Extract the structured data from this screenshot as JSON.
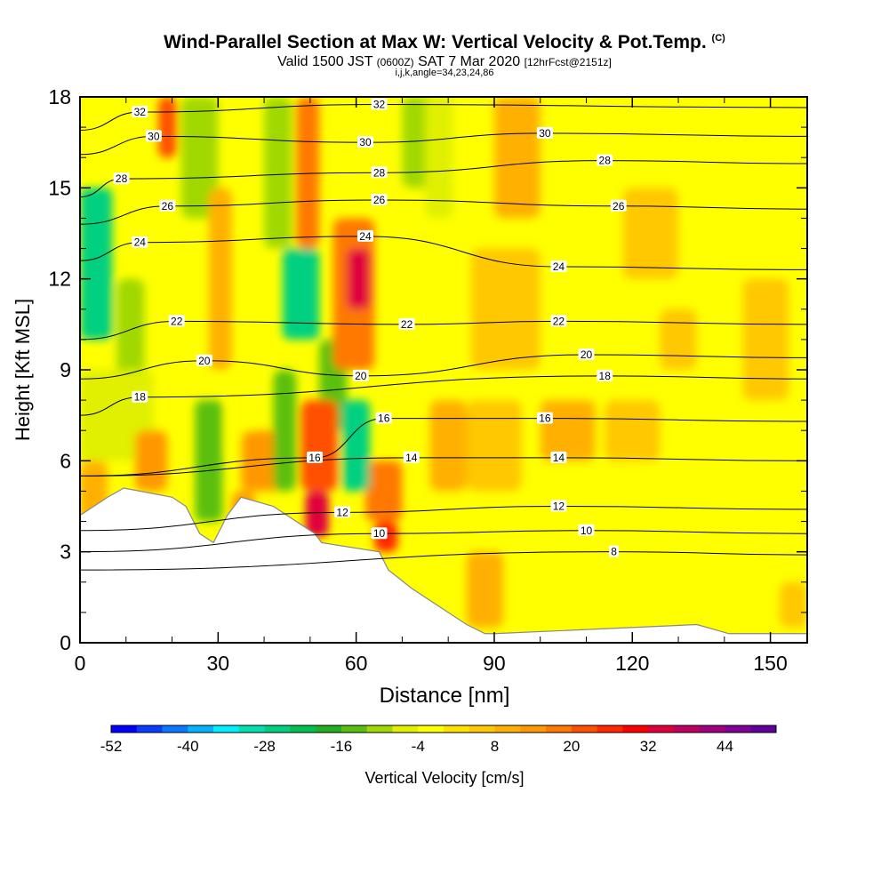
{
  "header": {
    "title": "Wind-Parallel Section at Max W: Vertical Velocity & Pot.Temp.",
    "copyright": "(C)",
    "valid_prefix": "Valid 1500 JST",
    "valid_zulu": "(0600Z)",
    "valid_date": "SAT 7 Mar 2020",
    "forecast_info": "[12hrFcst@2151z]",
    "indices": "i,j,k,angle=34,23,24,86"
  },
  "chart_data": {
    "type": "heatmap",
    "xlabel": "Distance [nm]",
    "ylabel": "Height [Kft MSL]",
    "xlim": [
      0,
      158
    ],
    "ylim": [
      0,
      18
    ],
    "x_ticks": [
      0,
      30,
      60,
      90,
      120,
      150
    ],
    "y_ticks": [
      0,
      3,
      6,
      9,
      12,
      15,
      18
    ],
    "grid": false,
    "colorbar": {
      "label": "Vertical Velocity [cm/s]",
      "tick_labels": [
        -52,
        -40,
        -28,
        -16,
        -4,
        8,
        20,
        32,
        44
      ],
      "range": [
        -52,
        52
      ],
      "colors": [
        "#0000ff",
        "#0a3cff",
        "#0c78ff",
        "#00b4ff",
        "#00f0ff",
        "#00e0b0",
        "#00d080",
        "#00c050",
        "#20b020",
        "#5ac010",
        "#a0d800",
        "#e0f000",
        "#ffff00",
        "#ffe000",
        "#ffc800",
        "#ffb000",
        "#ff9800",
        "#ff7800",
        "#ff5000",
        "#ff2800",
        "#ff0000",
        "#e0003c",
        "#c00060",
        "#a00080",
        "#800098",
        "#60009c"
      ]
    },
    "theta_contours": {
      "levels": [
        8,
        10,
        12,
        14,
        16,
        18,
        20,
        22,
        24,
        26,
        28,
        30,
        32
      ],
      "labels": [
        {
          "text": "32",
          "x": 13,
          "y": 17.5
        },
        {
          "text": "32",
          "x": 65,
          "y": 17.75
        },
        {
          "text": "30",
          "x": 16,
          "y": 16.7
        },
        {
          "text": "30",
          "x": 62,
          "y": 16.5
        },
        {
          "text": "30",
          "x": 101,
          "y": 16.8
        },
        {
          "text": "28",
          "x": 9,
          "y": 15.3
        },
        {
          "text": "28",
          "x": 65,
          "y": 15.5
        },
        {
          "text": "28",
          "x": 114,
          "y": 15.9
        },
        {
          "text": "26",
          "x": 19,
          "y": 14.4
        },
        {
          "text": "26",
          "x": 65,
          "y": 14.6
        },
        {
          "text": "26",
          "x": 117,
          "y": 14.4
        },
        {
          "text": "24",
          "x": 13,
          "y": 13.2
        },
        {
          "text": "24",
          "x": 62,
          "y": 13.4
        },
        {
          "text": "24",
          "x": 104,
          "y": 12.4
        },
        {
          "text": "22",
          "x": 21,
          "y": 10.6
        },
        {
          "text": "22",
          "x": 71,
          "y": 10.5
        },
        {
          "text": "22",
          "x": 104,
          "y": 10.6
        },
        {
          "text": "20",
          "x": 27,
          "y": 9.3
        },
        {
          "text": "20",
          "x": 61,
          "y": 8.8
        },
        {
          "text": "20",
          "x": 110,
          "y": 9.5
        },
        {
          "text": "18",
          "x": 13,
          "y": 8.1
        },
        {
          "text": "18",
          "x": 114,
          "y": 8.8
        },
        {
          "text": "16",
          "x": 66,
          "y": 7.4
        },
        {
          "text": "16",
          "x": 101,
          "y": 7.4
        },
        {
          "text": "16",
          "x": 51,
          "y": 6.1
        },
        {
          "text": "14",
          "x": 72,
          "y": 6.1
        },
        {
          "text": "14",
          "x": 104,
          "y": 6.1
        },
        {
          "text": "12",
          "x": 57,
          "y": 4.3
        },
        {
          "text": "12",
          "x": 104,
          "y": 4.5
        },
        {
          "text": "10",
          "x": 65,
          "y": 3.6
        },
        {
          "text": "10",
          "x": 110,
          "y": 3.7
        },
        {
          "text": "8",
          "x": 116,
          "y": 3.0
        }
      ]
    },
    "terrain_kft": [
      {
        "x": 0,
        "h": 4.2
      },
      {
        "x": 3,
        "h": 4.5
      },
      {
        "x": 6,
        "h": 4.8
      },
      {
        "x": 9.5,
        "h": 5.1
      },
      {
        "x": 20,
        "h": 4.8
      },
      {
        "x": 23,
        "h": 4.5
      },
      {
        "x": 26,
        "h": 3.6
      },
      {
        "x": 29,
        "h": 3.3
      },
      {
        "x": 32,
        "h": 4.2
      },
      {
        "x": 35,
        "h": 4.8
      },
      {
        "x": 42,
        "h": 4.5
      },
      {
        "x": 45,
        "h": 4.2
      },
      {
        "x": 48,
        "h": 3.9
      },
      {
        "x": 51,
        "h": 3.6
      },
      {
        "x": 52.5,
        "h": 3.3
      },
      {
        "x": 65,
        "h": 3.0
      },
      {
        "x": 67,
        "h": 2.4
      },
      {
        "x": 72,
        "h": 1.8
      },
      {
        "x": 78,
        "h": 1.2
      },
      {
        "x": 84,
        "h": 0.6
      },
      {
        "x": 88,
        "h": 0.3
      },
      {
        "x": 90,
        "h": 0.3
      },
      {
        "x": 134,
        "h": 0.6
      },
      {
        "x": 141,
        "h": 0.3
      },
      {
        "x": 158,
        "h": 0.3
      }
    ],
    "w_features": [
      {
        "sign": "down",
        "value": -28,
        "x0": 0,
        "x1": 7,
        "y0": 10,
        "y1": 15
      },
      {
        "sign": "down",
        "value": -16,
        "x0": 25,
        "x1": 31,
        "y0": 4,
        "y1": 8
      },
      {
        "sign": "down",
        "value": -28,
        "x0": 44,
        "x1": 52,
        "y0": 10,
        "y1": 13
      },
      {
        "sign": "down",
        "value": -28,
        "x0": 57,
        "x1": 63,
        "y0": 5,
        "y1": 8
      },
      {
        "sign": "down",
        "value": -8,
        "x0": 75,
        "x1": 81,
        "y0": 14,
        "y1": 18
      },
      {
        "sign": "up",
        "value": 32,
        "x0": 58,
        "x1": 63,
        "y0": 11,
        "y1": 13
      },
      {
        "sign": "up",
        "value": 32,
        "x0": 49,
        "x1": 54,
        "y0": 3.5,
        "y1": 5
      },
      {
        "sign": "up",
        "value": 24,
        "x0": 64,
        "x1": 69,
        "y0": 3,
        "y1": 4
      },
      {
        "sign": "up",
        "value": 20,
        "x0": 17,
        "x1": 21,
        "y0": 16,
        "y1": 18
      }
    ]
  }
}
